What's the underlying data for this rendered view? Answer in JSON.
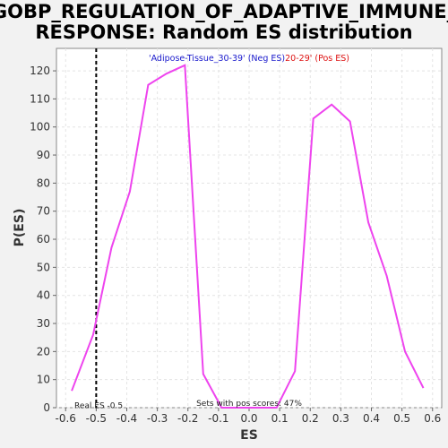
{
  "chart_data": {
    "type": "line",
    "title_line1": "GOBP_REGULATION_OF_ADAPTIVE_IMMUNE_",
    "title_line2": "RESPONSE: Random ES distribution",
    "xlabel": "ES",
    "ylabel": "P(ES)",
    "xlim": [
      -0.63,
      0.63
    ],
    "ylim": [
      0,
      128
    ],
    "xticks": [
      "-0.6",
      "-0.5",
      "-0.4",
      "-0.3",
      "-0.2",
      "-0.1",
      "0.0",
      "0.1",
      "0.2",
      "0.3",
      "0.4",
      "0.5",
      "0.6"
    ],
    "yticks": [
      "0",
      "10",
      "20",
      "30",
      "40",
      "50",
      "60",
      "70",
      "80",
      "90",
      "100",
      "110",
      "120"
    ],
    "grid": true,
    "legend_neg": "'Adipose-Tissue_30-39' (Neg ES)",
    "legend_pos": "20-29' (Pos ES)",
    "legend_neg_color": "#1a1acc",
    "legend_pos_color": "#dd1111",
    "series": [
      {
        "color": "#ee44ee",
        "x": [
          -0.58,
          -0.51,
          -0.45,
          -0.39,
          -0.33,
          -0.27,
          -0.21,
          -0.15,
          -0.09,
          -0.03,
          0.03,
          0.09,
          0.15,
          0.21,
          0.27,
          0.33,
          0.39,
          0.45,
          0.51,
          0.57
        ],
        "y": [
          6,
          26,
          57,
          77,
          115,
          119,
          122,
          12,
          0,
          0,
          0,
          0,
          13,
          103,
          108,
          102,
          66,
          47,
          20,
          7
        ]
      }
    ],
    "real_es": -0.5,
    "real_es_label": "Real ES -0.5",
    "pos_scores_label": "Sets with pos scores: 47%"
  }
}
